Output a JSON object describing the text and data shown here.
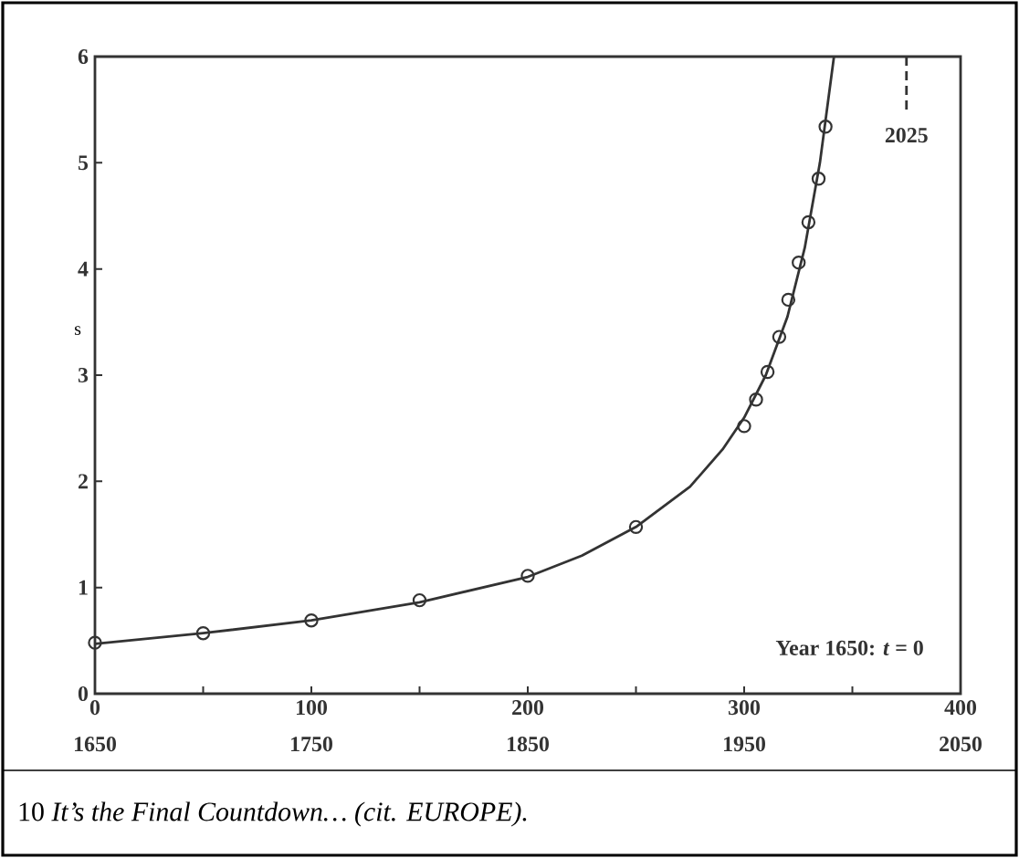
{
  "chart_data": {
    "type": "scatter",
    "ylabel": "s",
    "xlim": [
      0,
      400
    ],
    "ylim": [
      0,
      6
    ],
    "xticks": [
      0,
      {
        "value": 50,
        "label": null
      },
      100,
      {
        "value": 150,
        "label": null
      },
      200,
      {
        "value": 250,
        "label": null
      },
      300,
      {
        "value": 350,
        "label": null
      },
      400
    ],
    "yticks": [
      0,
      1,
      2,
      3,
      4,
      5,
      6
    ],
    "x2lim": [
      1650,
      2050
    ],
    "x2ticks": [
      1650,
      1750,
      1850,
      1950,
      2050
    ],
    "series": [
      {
        "marker": "circle",
        "color": "#333333",
        "x": [
          0,
          50,
          100,
          150,
          200,
          250,
          300,
          305.5,
          310.8,
          316.2,
          320.4,
          325.2,
          329.7,
          334.4,
          337.6
        ],
        "values": [
          0.48,
          0.57,
          0.69,
          0.88,
          1.11,
          1.57,
          2.52,
          2.77,
          3.03,
          3.36,
          3.71,
          4.06,
          4.44,
          4.85,
          5.34
        ]
      },
      {
        "type": "line",
        "line_style": "solid",
        "color": "#333333",
        "x": [
          0,
          50,
          100,
          150,
          200,
          225,
          250,
          275,
          290,
          300,
          310,
          320,
          328,
          335,
          341.5
        ],
        "values": [
          0.47,
          0.57,
          0.69,
          0.86,
          1.1,
          1.3,
          1.57,
          1.95,
          2.3,
          2.6,
          3.0,
          3.55,
          4.2,
          5.0,
          6.0
        ]
      }
    ],
    "ref_lines": [
      {
        "axis": "x2",
        "value": 2025,
        "label": "2025",
        "line_style": "dashed",
        "color": "#333333"
      }
    ],
    "annotations": [
      "Year 1650: *t* = 0",
      "10 *It’s the Final Countdown… (cit. EUROPE).*"
    ]
  }
}
